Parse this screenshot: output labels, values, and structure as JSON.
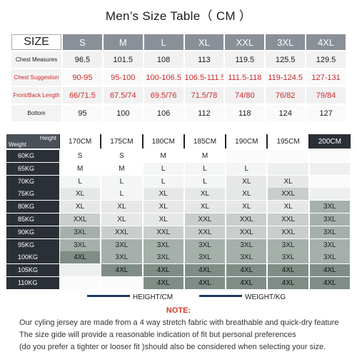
{
  "title": "Men’s  Size Table（  CM   ）",
  "size_table": {
    "header_label": "SIZE",
    "sizes": [
      "S",
      "M",
      "L",
      "XL",
      "XXL",
      "3XL",
      "4XL"
    ],
    "rows": [
      {
        "label": "Chest Measures",
        "red": false,
        "values": [
          "96.5",
          "101.5",
          "108",
          "113",
          "119.5",
          "125.5",
          "129.5"
        ]
      },
      {
        "label": "Chest Suggestion",
        "red": true,
        "values": [
          "90-95",
          "95-100",
          "100-106.5",
          "106.5-111.5",
          "111.5-118",
          "119-124.5",
          "127-131"
        ]
      },
      {
        "label": "Front/Back Length",
        "red": true,
        "values": [
          "66/71.5",
          "67.5/74",
          "69.5/76",
          "71.5/78",
          "74/80",
          "76/82",
          "79/84"
        ]
      },
      {
        "label": "Bottom",
        "red": false,
        "values": [
          "95",
          "100",
          "106",
          "112",
          "118",
          "124",
          "127"
        ]
      }
    ]
  },
  "grid": {
    "corner_height": "Height",
    "corner_weight": "Weight",
    "heights": [
      "170CM",
      "175CM",
      "180CM",
      "185CM",
      "190CM",
      "195CM",
      "200CM"
    ],
    "weights": [
      "60KG",
      "65KG",
      "70KG",
      "75KG",
      "80KG",
      "85KG",
      "90KG",
      "95KG",
      "100KG",
      "105KG",
      "110KG"
    ],
    "cells": [
      [
        "S",
        "S",
        "M",
        "M",
        "",
        "",
        ""
      ],
      [
        "M",
        "M",
        "L",
        "L",
        "L",
        "",
        ""
      ],
      [
        "L",
        "L",
        "L",
        "L",
        "XL",
        "XL",
        ""
      ],
      [
        "XL",
        "L",
        "XL",
        "XL",
        "XL",
        "XXL",
        ""
      ],
      [
        "XL",
        "XL",
        "XL",
        "XL",
        "XL",
        "XL",
        "3XL"
      ],
      [
        "XXL",
        "XL",
        "XL",
        "XXL",
        "XXL",
        "XXL",
        "3XL"
      ],
      [
        "3XL",
        "XXL",
        "XXL",
        "XXL",
        "XXL",
        "XXL",
        "3XL"
      ],
      [
        "3XL",
        "3XL",
        "3XL",
        "3XL",
        "3XL",
        "3XL",
        "3XL"
      ],
      [
        "4XL",
        "3XL",
        "3XL",
        "3XL",
        "3XL",
        "3XL",
        "3XL"
      ],
      [
        "",
        "4XL",
        "4XL",
        "4XL",
        "4XL",
        "4XL",
        "4XL"
      ],
      [
        "",
        "",
        "4XL",
        "4XL",
        "4XL",
        "4XL",
        "4XL"
      ]
    ]
  },
  "legend": {
    "height": "HEIGHT/CM",
    "weight": "WEIGHT/KG"
  },
  "note": {
    "title": "NOTE:",
    "lines": [
      "Our cyling jersey are made from a 4 way stretch fabric with breathable and quick-dry feature",
      "The size gide will provide a  reasonable indication of fit but personal preferences",
      "(do you prefer a tighter or looser fit )should also be considered when selecting your size."
    ]
  }
}
